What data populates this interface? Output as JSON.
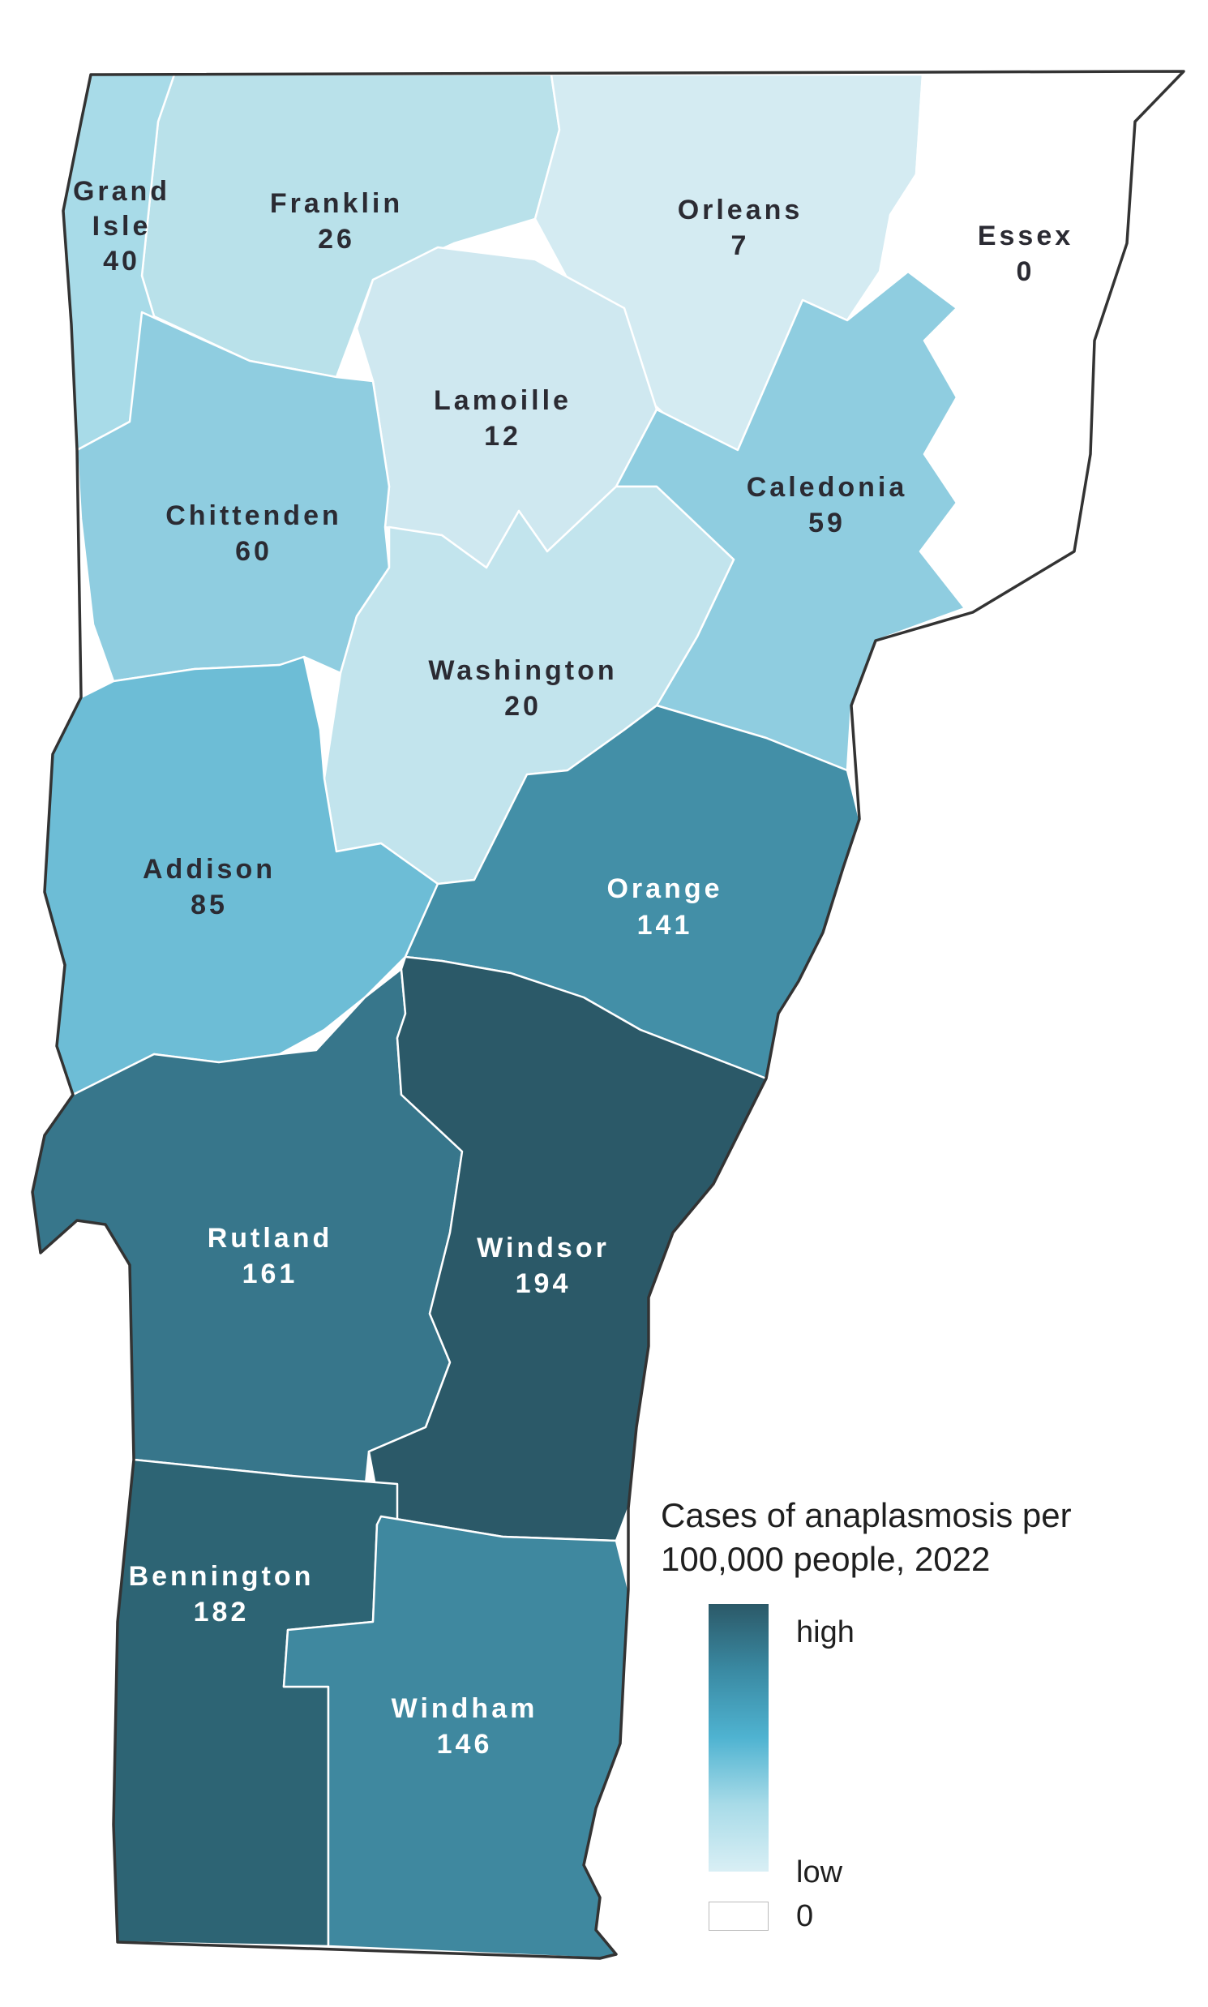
{
  "legend": {
    "title_line1": "Cases of anaplasmosis per",
    "title_line2": "100,000 people, 2022",
    "high_label": "high",
    "low_label": "low",
    "zero_label": "0",
    "gradient_colors": [
      "#2b5968",
      "#3a8aa3",
      "#4fb3d1",
      "#a8dbe8",
      "#d9eff5"
    ],
    "zero_color": "#ffffff"
  },
  "counties": [
    {
      "id": "grand-isle",
      "name_line1": "Grand",
      "name_line2": "Isle",
      "value": "40",
      "color": "#a8dbe8"
    },
    {
      "id": "franklin",
      "name_line1": "Franklin",
      "value": "26",
      "color": "#b9e1ea"
    },
    {
      "id": "orleans",
      "name_line1": "Orleans",
      "value": "7",
      "color": "#d4ebf2"
    },
    {
      "id": "essex",
      "name_line1": "Essex",
      "value": "0",
      "color": "#ffffff"
    },
    {
      "id": "lamoille",
      "name_line1": "Lamoille",
      "value": "12",
      "color": "#cfe8f0"
    },
    {
      "id": "caledonia",
      "name_line1": "Caledonia",
      "value": "59",
      "color": "#8fcde0"
    },
    {
      "id": "chittenden",
      "name_line1": "Chittenden",
      "value": "60",
      "color": "#8fcde0"
    },
    {
      "id": "washington",
      "name_line1": "Washington",
      "value": "20",
      "color": "#c2e4ed"
    },
    {
      "id": "addison",
      "name_line1": "Addison",
      "value": "85",
      "color": "#6dbdd6"
    },
    {
      "id": "orange",
      "name_line1": "Orange",
      "value": "141",
      "color": "#438fa7"
    },
    {
      "id": "rutland",
      "name_line1": "Rutland",
      "value": "161",
      "color": "#37768b"
    },
    {
      "id": "windsor",
      "name_line1": "Windsor",
      "value": "194",
      "color": "#2b5968"
    },
    {
      "id": "bennington",
      "name_line1": "Bennington",
      "value": "182",
      "color": "#2d6474"
    },
    {
      "id": "windham",
      "name_line1": "Windham",
      "value": "146",
      "color": "#3f889f"
    }
  ]
}
